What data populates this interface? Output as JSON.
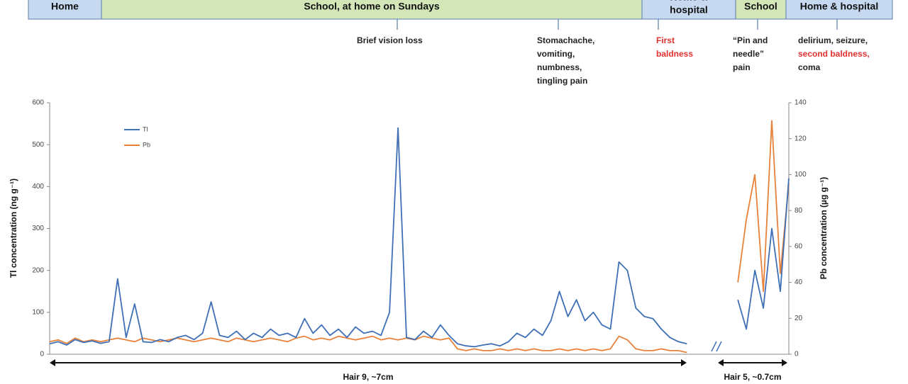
{
  "chart_data": {
    "type": "line",
    "ylabel": "Tl concentration (ng g⁻¹)",
    "y2label": "Pb concentration (µg g⁻¹)",
    "ylim": [
      0,
      600
    ],
    "yticks": [
      0,
      100,
      200,
      300,
      400,
      500,
      600
    ],
    "y2lim": [
      0,
      140
    ],
    "y2ticks": [
      0,
      20,
      40,
      60,
      80,
      100,
      120,
      140
    ],
    "series": [
      {
        "name": "Tl",
        "color": "#3f6fb5",
        "values": [
          25,
          30,
          22,
          35,
          28,
          32,
          26,
          30,
          180,
          40,
          120,
          30,
          28,
          35,
          30,
          40,
          45,
          35,
          50,
          125,
          45,
          40,
          55,
          35,
          50,
          40,
          60,
          45,
          50,
          40,
          85,
          50,
          70,
          45,
          60,
          40,
          65,
          50,
          55,
          45,
          100,
          540,
          40,
          35,
          55,
          40,
          70,
          45,
          25,
          20,
          18,
          22,
          25,
          20,
          30,
          50,
          40,
          60,
          45,
          80,
          150,
          90,
          130,
          80,
          100,
          70,
          60,
          220,
          200,
          110,
          90,
          85,
          60,
          40,
          30,
          25,
          null,
          null,
          null,
          null,
          null,
          130,
          60,
          200,
          110,
          300,
          150,
          420
        ]
      },
      {
        "name": "Pb",
        "color": "#e8823a",
        "axis": "y2",
        "values": [
          7,
          8,
          6,
          9,
          7,
          8,
          7,
          8,
          9,
          8,
          7,
          9,
          8,
          7,
          8,
          9,
          8,
          7,
          8,
          9,
          8,
          7,
          9,
          8,
          7,
          8,
          9,
          8,
          7,
          9,
          10,
          8,
          9,
          8,
          10,
          9,
          8,
          9,
          10,
          8,
          9,
          8,
          9,
          8,
          10,
          9,
          8,
          9,
          3,
          2,
          3,
          2,
          2,
          3,
          2,
          3,
          2,
          3,
          2,
          2,
          3,
          2,
          3,
          2,
          3,
          2,
          3,
          10,
          8,
          3,
          2,
          2,
          3,
          2,
          2,
          1,
          null,
          null,
          null,
          null,
          null,
          40,
          75,
          100,
          35,
          130,
          45,
          95
        ]
      }
    ],
    "legend": "upper left",
    "timeline": [
      {
        "lines": [
          "Home"
        ],
        "color": "#c6d9f0"
      },
      {
        "lines": [
          "School, at home on Sundays"
        ],
        "color": "#d3e6b8"
      },
      {
        "lines": [
          "Home &",
          "hospital"
        ],
        "color": "#c6d9f0"
      },
      {
        "lines": [
          "School"
        ],
        "color": "#d3e6b8"
      },
      {
        "lines": [
          "Home & hospital"
        ],
        "color": "#c6d9f0"
      }
    ],
    "annotations": [
      {
        "lines": [
          "Brief vision loss"
        ],
        "colors": [
          "#222222"
        ]
      },
      {
        "lines": [
          "Stomachache,",
          "vomiting,",
          "numbness,",
          "tingling pain"
        ],
        "colors": [
          "#222222",
          "#222222",
          "#222222",
          "#222222"
        ]
      },
      {
        "lines": [
          "First",
          "baldness"
        ],
        "colors": [
          "#e0312f",
          "#e0312f"
        ]
      },
      {
        "lines": [
          "“Pin and",
          "needle”",
          "pain"
        ],
        "colors": [
          "#222222",
          "#222222",
          "#222222"
        ]
      },
      {
        "lines": [
          "delirium, seizure,",
          "second baldness,",
          "coma"
        ],
        "colors": [
          "#222222",
          "#e0312f",
          "#222222"
        ]
      }
    ],
    "segments": [
      "Hair 9, ~7cm",
      "Hair 5, ~0.7cm"
    ]
  }
}
